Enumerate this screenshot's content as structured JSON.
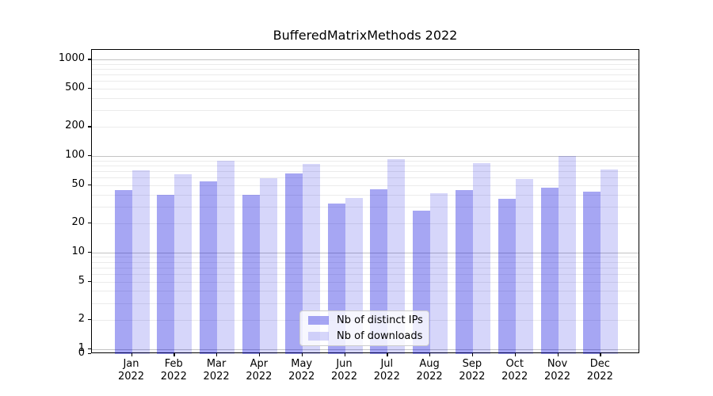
{
  "chart_data": {
    "type": "bar",
    "title": "BufferedMatrixMethods 2022",
    "categories": [
      "Jan",
      "Feb",
      "Mar",
      "Apr",
      "May",
      "Jun",
      "Jul",
      "Aug",
      "Sep",
      "Oct",
      "Nov",
      "Dec"
    ],
    "category_year": "2022",
    "series": [
      {
        "name": "Nb of distinct IPs",
        "color": "rgba(0,0,221,0.35)",
        "color_hex": "#a7a7f3",
        "values": [
          44,
          40,
          55,
          40,
          66,
          32,
          45,
          27,
          44,
          36,
          47,
          43
        ]
      },
      {
        "name": "Nb of downloads",
        "color": "rgba(0,0,221,0.16)",
        "color_hex": "#d8d8f9",
        "values": [
          71,
          65,
          90,
          59,
          83,
          37,
          93,
          41,
          84,
          58,
          101,
          72
        ]
      }
    ],
    "yscale": "symlog",
    "yticks": [
      0,
      1,
      2,
      5,
      10,
      20,
      50,
      100,
      200,
      500,
      1000
    ],
    "ylim": [
      0,
      1259
    ],
    "grid": true,
    "legend_position": "lower center",
    "grid_major_values": [
      1,
      10,
      100,
      1000
    ],
    "colors": {
      "axis": "#000000",
      "grid_major": "#c3c3c3",
      "grid_minor": "#ebebeb"
    }
  }
}
